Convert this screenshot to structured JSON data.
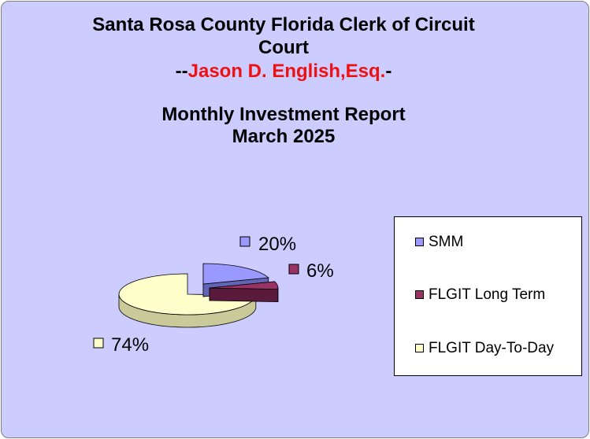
{
  "chart_data": {
    "type": "pie",
    "title_lines": [
      "Santa Rosa County Florida Clerk of Circuit",
      "Court"
    ],
    "clerk_line": {
      "prefix": "--",
      "name": "Jason D. English,Esq.",
      "suffix": "-"
    },
    "subtitle_lines": [
      "Monthly Investment Report",
      "March 2025"
    ],
    "three_d": true,
    "legend_position": "right",
    "slices": [
      {
        "label": "SMM",
        "value": 20,
        "data_label": "20%",
        "color": "#9999ff",
        "side_color": "#6464b4"
      },
      {
        "label": "FLGIT Long Term",
        "value": 6,
        "data_label": "6%",
        "color": "#993366",
        "side_color": "#5a1a3c"
      },
      {
        "label": "FLGIT Day-To-Day",
        "value": 74,
        "data_label": "74%",
        "color": "#ffffcc",
        "side_color": "#c9c99a"
      }
    ]
  },
  "colors": {
    "background": "#ccccff",
    "clerk_name": "#ee1111"
  }
}
